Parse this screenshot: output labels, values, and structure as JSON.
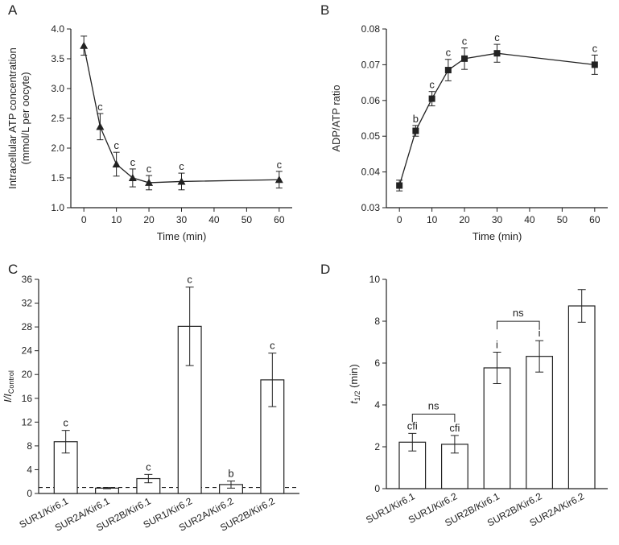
{
  "chart_data": [
    {
      "panel": "A",
      "type": "line",
      "xlabel": "Time (min)",
      "ylabel_lines": [
        "Intracellular ATP concentration",
        "(mmol/L per oocyte)"
      ],
      "xlim": [
        -4,
        64
      ],
      "ylim": [
        1.0,
        4.0
      ],
      "xticks": [
        0,
        10,
        20,
        30,
        40,
        50,
        60
      ],
      "yticks": [
        "1.0",
        "1.5",
        "2.0",
        "2.5",
        "3.0",
        "3.5",
        "4.0"
      ],
      "marker": "triangle",
      "points": [
        {
          "x": 0,
          "y": 3.72,
          "err": 0.16,
          "label": ""
        },
        {
          "x": 5,
          "y": 2.36,
          "err": 0.22,
          "label": "c"
        },
        {
          "x": 10,
          "y": 1.73,
          "err": 0.2,
          "label": "c"
        },
        {
          "x": 15,
          "y": 1.5,
          "err": 0.15,
          "label": "c"
        },
        {
          "x": 20,
          "y": 1.42,
          "err": 0.12,
          "label": "c"
        },
        {
          "x": 30,
          "y": 1.44,
          "err": 0.14,
          "label": "c"
        },
        {
          "x": 60,
          "y": 1.47,
          "err": 0.14,
          "label": "c"
        }
      ]
    },
    {
      "panel": "B",
      "type": "line",
      "xlabel": "Time (min)",
      "ylabel": "ADP/ATP ratio",
      "xlim": [
        -4,
        64
      ],
      "ylim": [
        0.03,
        0.08
      ],
      "xticks": [
        0,
        10,
        20,
        30,
        40,
        50,
        60
      ],
      "yticks": [
        "0.03",
        "0.04",
        "0.05",
        "0.06",
        "0.07",
        "0.08"
      ],
      "marker": "square",
      "points": [
        {
          "x": 0,
          "y": 0.0362,
          "err": 0.0015,
          "label": ""
        },
        {
          "x": 5,
          "y": 0.0515,
          "err": 0.0015,
          "label": "b"
        },
        {
          "x": 10,
          "y": 0.0605,
          "err": 0.002,
          "label": "c"
        },
        {
          "x": 15,
          "y": 0.0685,
          "err": 0.003,
          "label": "c"
        },
        {
          "x": 20,
          "y": 0.0717,
          "err": 0.003,
          "label": "c"
        },
        {
          "x": 30,
          "y": 0.0732,
          "err": 0.0025,
          "label": "c"
        },
        {
          "x": 60,
          "y": 0.07,
          "err": 0.0027,
          "label": "c"
        }
      ]
    },
    {
      "panel": "C",
      "type": "bar",
      "ylabel_main": "I/I",
      "ylabel_sub": "Control",
      "ylim": [
        0,
        36
      ],
      "yticks": [
        "0",
        "4",
        "8",
        "12",
        "16",
        "20",
        "24",
        "28",
        "32",
        "36"
      ],
      "reference_line": 1,
      "categories": [
        "SUR1/Kir6.1",
        "SUR2A/Kir6.1",
        "SUR2B/Kir6.1",
        "SUR1/Kir6.2",
        "SUR2A/Kir6.2",
        "SUR2B/Kir6.2"
      ],
      "values": [
        8.7,
        0.9,
        2.5,
        28.1,
        1.5,
        19.1
      ],
      "errors": [
        1.9,
        0.1,
        0.7,
        6.6,
        0.6,
        4.5
      ],
      "bar_labels": [
        "c",
        "",
        "c",
        "c",
        "b",
        "c"
      ]
    },
    {
      "panel": "D",
      "type": "bar",
      "ylabel_main": "t",
      "ylabel_sub": "1/2",
      "ylabel_unit": " (min)",
      "ylim": [
        0,
        10
      ],
      "yticks": [
        "0",
        "2",
        "4",
        "6",
        "8",
        "10"
      ],
      "categories": [
        "SUR1/Kir6.1",
        "SUR1/Kir6.2",
        "SUR2B/Kir6.1",
        "SUR2B/Kir6.2",
        "SUR2A/Kir6.2"
      ],
      "values": [
        2.22,
        2.12,
        5.77,
        6.32,
        8.73
      ],
      "errors": [
        0.42,
        0.42,
        0.75,
        0.75,
        0.78
      ],
      "bar_labels": [
        "cfi",
        "cfi",
        "i",
        "i",
        ""
      ],
      "brackets": [
        {
          "from": 0,
          "to": 1,
          "label": "ns"
        },
        {
          "from": 2,
          "to": 3,
          "label": "ns"
        }
      ]
    }
  ]
}
